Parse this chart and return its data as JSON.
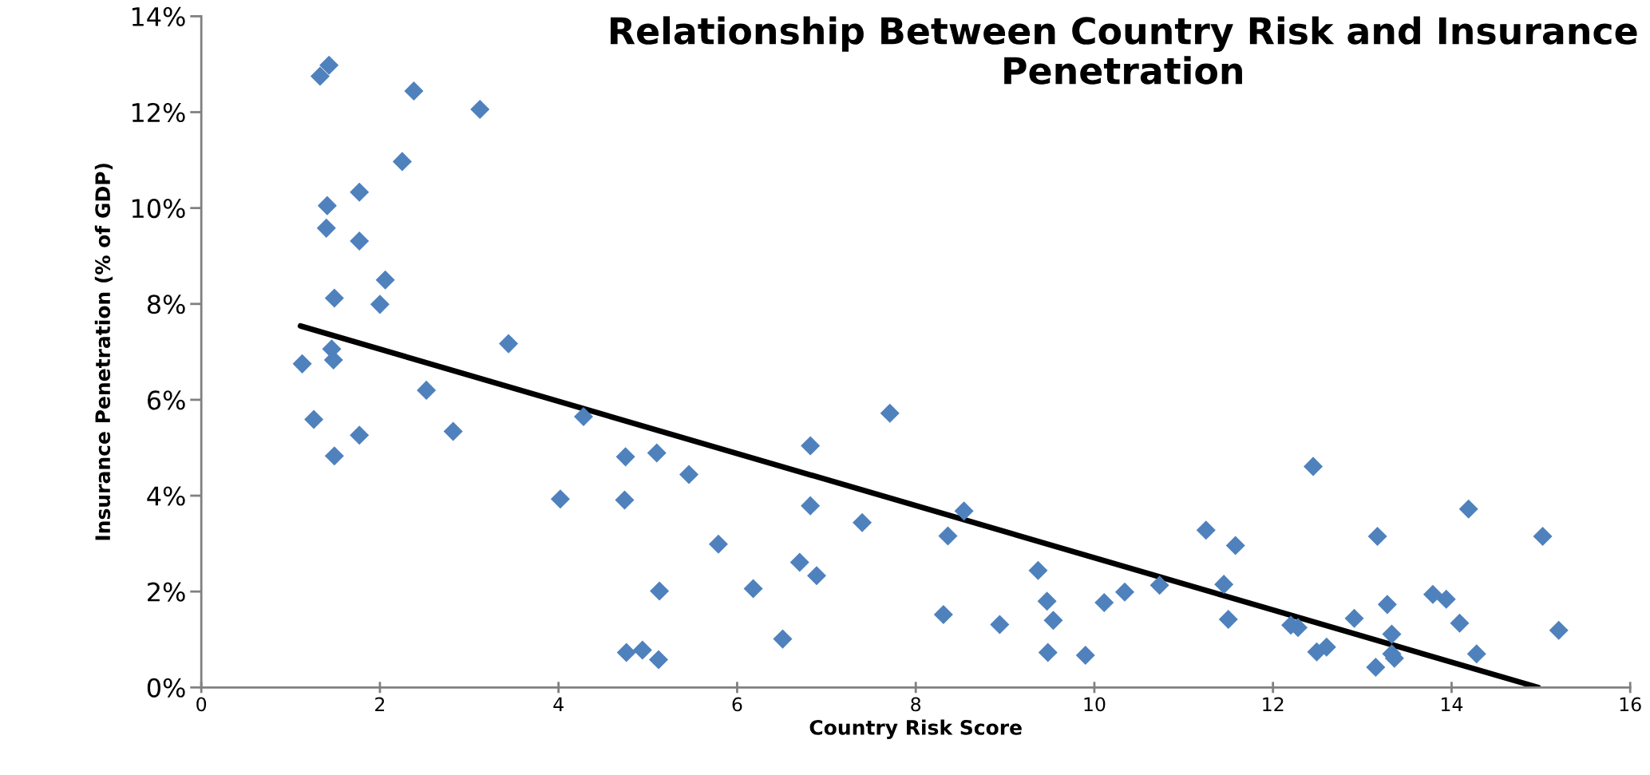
{
  "chart_data": {
    "type": "scatter",
    "title": "Relationship Between Country Risk and Insurance Penetration",
    "xlabel": "Country Risk Score",
    "ylabel": "Insurance Penetration (% of GDP)",
    "xlim": [
      0,
      16
    ],
    "xticks": [
      0,
      2,
      4,
      6,
      8,
      10,
      12,
      14,
      16
    ],
    "ylim": [
      0,
      14
    ],
    "yticks": [
      {
        "value": 0,
        "label": "0%"
      },
      {
        "value": 2,
        "label": "2%"
      },
      {
        "value": 4,
        "label": "4%"
      },
      {
        "value": 6,
        "label": "6%"
      },
      {
        "value": 8,
        "label": "8%"
      },
      {
        "value": 10,
        "label": "10%"
      },
      {
        "value": 12,
        "label": "12%"
      },
      {
        "value": 14,
        "label": "14%"
      }
    ],
    "grid": false,
    "legend": false,
    "marker": "diamond",
    "series": [
      {
        "color": "#4f81bd",
        "x": [
          1.43,
          1.33,
          2.38,
          3.12,
          2.25,
          1.77,
          1.41,
          1.4,
          1.77,
          2.06,
          1.49,
          2.0,
          3.44,
          1.46,
          1.48,
          1.13,
          2.52,
          1.26,
          1.77,
          1.49,
          2.82,
          4.02,
          4.28,
          4.75,
          5.1,
          5.46,
          4.74,
          5.79,
          5.13,
          6.18,
          4.76,
          4.94,
          5.12,
          6.51,
          6.82,
          7.71,
          6.82,
          7.4,
          6.7,
          6.89,
          8.54,
          8.36,
          8.31,
          8.94,
          9.37,
          9.47,
          9.54,
          9.48,
          9.9,
          10.11,
          10.34,
          10.73,
          11.25,
          11.58,
          11.45,
          11.5,
          12.45,
          12.2,
          12.28,
          12.49,
          12.6,
          12.91,
          13.17,
          13.28,
          13.33,
          13.33,
          13.36,
          13.15,
          13.79,
          13.94,
          14.19,
          14.09,
          14.28,
          15.02,
          15.2
        ],
        "values": [
          12.98,
          12.75,
          12.44,
          12.06,
          10.97,
          10.33,
          10.05,
          9.58,
          9.31,
          8.5,
          8.12,
          7.99,
          7.17,
          7.06,
          6.83,
          6.75,
          6.2,
          5.59,
          5.26,
          4.83,
          5.34,
          3.93,
          5.65,
          4.81,
          4.89,
          4.44,
          3.91,
          2.99,
          2.01,
          2.06,
          0.73,
          0.78,
          0.58,
          1.01,
          5.04,
          5.72,
          3.79,
          3.44,
          2.61,
          2.33,
          3.68,
          3.16,
          1.52,
          1.31,
          2.44,
          1.8,
          1.4,
          0.73,
          0.67,
          1.77,
          1.99,
          2.13,
          3.28,
          2.96,
          2.15,
          1.42,
          4.61,
          1.3,
          1.25,
          0.74,
          0.84,
          1.44,
          3.15,
          1.73,
          1.11,
          0.7,
          0.61,
          0.42,
          1.94,
          1.84,
          3.72,
          1.34,
          0.7,
          3.15,
          1.19
        ]
      },
      {
        "type": "line",
        "color": "#000000",
        "marker": "none",
        "line_style": "solid",
        "x": [
          1.11,
          14.97
        ],
        "values": [
          7.54,
          0
        ]
      }
    ]
  }
}
